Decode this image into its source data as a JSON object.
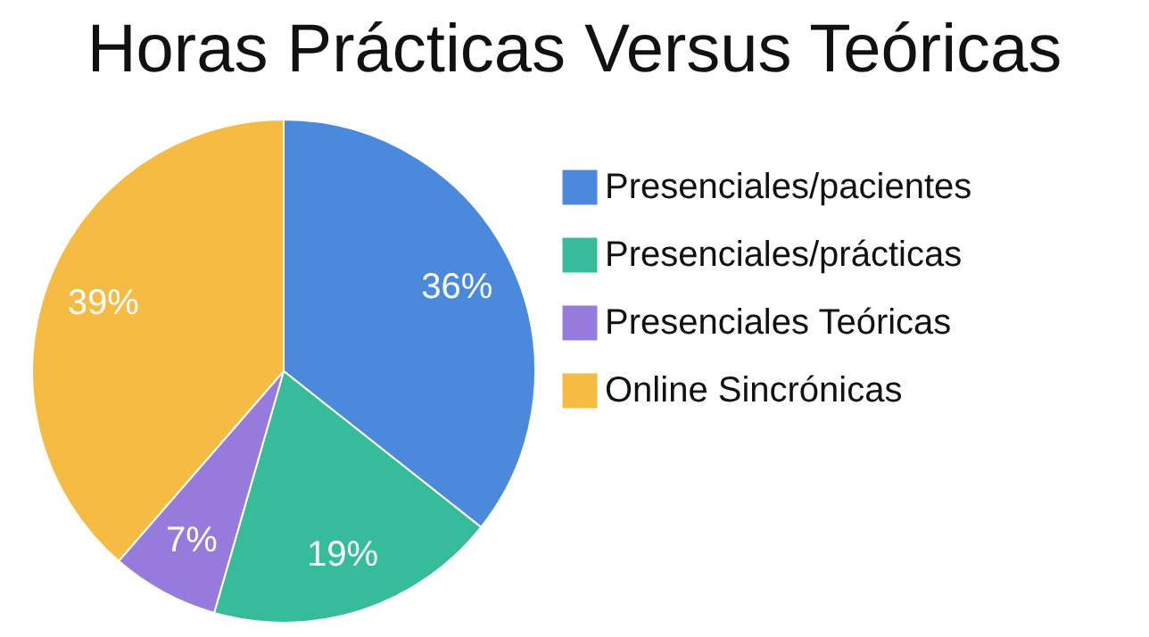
{
  "chart_data": {
    "type": "pie",
    "title": "Horas Prácticas Versus Teóricas",
    "categories": [
      "Presenciales/pacientes",
      "Presenciales/prácticas",
      "Presenciales Teóricas",
      "Online Sincrónicas"
    ],
    "values": [
      36,
      19,
      7,
      39
    ],
    "colors": [
      "#4a89dc",
      "#37bc9b",
      "#967adc",
      "#f6bb42"
    ],
    "value_labels": [
      "36%",
      "19%",
      "7%",
      "39%"
    ],
    "legend": "right"
  }
}
